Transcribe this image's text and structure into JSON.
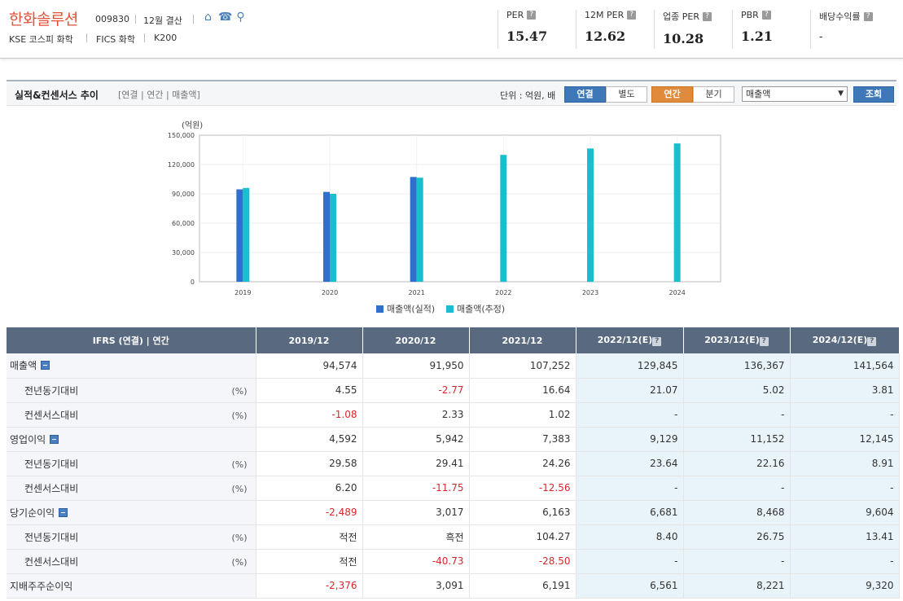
{
  "company": {
    "name": "한화솔루션",
    "code": "009830",
    "fiscal": "12월 결산",
    "tags": [
      "KSE  코스피 화학",
      "FICS 화학",
      "K200"
    ]
  },
  "metrics": [
    {
      "label": "PER",
      "value": "15.47"
    },
    {
      "label": "12M PER",
      "value": "12.62"
    },
    {
      "label": "업종 PER",
      "value": "10.28"
    },
    {
      "label": "PBR",
      "value": "1.21"
    },
    {
      "label": "배당수익률",
      "value": "-"
    }
  ],
  "section": {
    "title": "실적&컨센서스 추이",
    "subtitle": "[연결 | 연간 | 매출액]",
    "unit": "단위 : 억원, 배",
    "btn_consolidated": "연결",
    "btn_separate": "별도",
    "btn_annual": "연간",
    "btn_quarter": "분기",
    "select_value": "매출액",
    "btn_search": "조회"
  },
  "chart_data": {
    "type": "bar",
    "ylabel": "(억원)",
    "ylim": [
      0,
      150000
    ],
    "yticks": [
      "150,000",
      "120,000",
      "90,000",
      "60,000",
      "30,000",
      "0"
    ],
    "categories": [
      "2019",
      "2020",
      "2021",
      "2022",
      "2023",
      "2024"
    ],
    "series": [
      {
        "name": "매출액(실적)",
        "color": "#2f6fce",
        "values": [
          94574,
          91950,
          107252,
          null,
          null,
          null
        ]
      },
      {
        "name": "매출액(추정)",
        "color": "#19bfcc",
        "values": [
          96000,
          90000,
          106500,
          129845,
          136367,
          141564
        ]
      }
    ],
    "legend_position": "bottom"
  },
  "table": {
    "header_label": "IFRS (연결) | 연간",
    "columns": [
      "2019/12",
      "2020/12",
      "2021/12",
      "2022/12(E)",
      "2023/12(E)",
      "2024/12(E)"
    ],
    "rows": [
      {
        "label": "매출액",
        "sub": false,
        "toggle": true,
        "pct": "",
        "values": [
          "94,574",
          "91,950",
          "107,252",
          "129,845",
          "136,367",
          "141,564"
        ]
      },
      {
        "label": "전년동기대비",
        "sub": true,
        "toggle": false,
        "pct": "(%)",
        "values": [
          "4.55",
          "-2.77",
          "16.64",
          "21.07",
          "5.02",
          "3.81"
        ]
      },
      {
        "label": "컨센서스대비",
        "sub": true,
        "toggle": false,
        "pct": "(%)",
        "values": [
          "-1.08",
          "2.33",
          "1.02",
          "-",
          "-",
          "-"
        ]
      },
      {
        "label": "영업이익",
        "sub": false,
        "toggle": true,
        "pct": "",
        "values": [
          "4,592",
          "5,942",
          "7,383",
          "9,129",
          "11,152",
          "12,145"
        ]
      },
      {
        "label": "전년동기대비",
        "sub": true,
        "toggle": false,
        "pct": "(%)",
        "values": [
          "29.58",
          "29.41",
          "24.26",
          "23.64",
          "22.16",
          "8.91"
        ]
      },
      {
        "label": "컨센서스대비",
        "sub": true,
        "toggle": false,
        "pct": "(%)",
        "values": [
          "6.20",
          "-11.75",
          "-12.56",
          "-",
          "-",
          "-"
        ]
      },
      {
        "label": "당기순이익",
        "sub": false,
        "toggle": true,
        "pct": "",
        "values": [
          "-2,489",
          "3,017",
          "6,163",
          "6,681",
          "8,468",
          "9,604"
        ]
      },
      {
        "label": "전년동기대비",
        "sub": true,
        "toggle": false,
        "pct": "(%)",
        "values": [
          "적전",
          "흑전",
          "104.27",
          "8.40",
          "26.75",
          "13.41"
        ]
      },
      {
        "label": "컨센서스대비",
        "sub": true,
        "toggle": false,
        "pct": "(%)",
        "values": [
          "적전",
          "-40.73",
          "-28.50",
          "-",
          "-",
          "-"
        ]
      },
      {
        "label": "지배주주순이익",
        "sub": false,
        "toggle": false,
        "pct": "",
        "values": [
          "-2,376",
          "3,091",
          "6,191",
          "6,561",
          "8,221",
          "9,320"
        ]
      }
    ]
  }
}
